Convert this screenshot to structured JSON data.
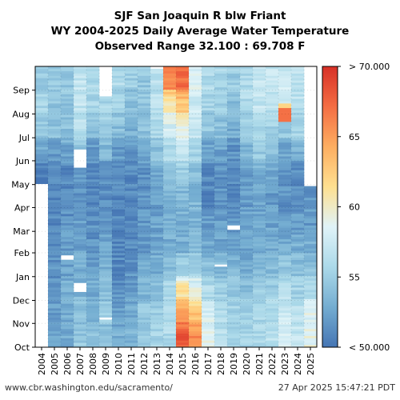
{
  "title": {
    "line1": "SJF San Joaquin R blw Friant",
    "line2": "WY 2004-2025 Daily Average Water Temperature",
    "line3": "Observed Range 32.100 : 69.708 F"
  },
  "footer": {
    "source": "www.cbr.washington.edu/sacramento/",
    "timestamp": "27 Apr 2025 15:47:21 PDT"
  },
  "chart_data": {
    "type": "heatmap",
    "x": [
      "2004",
      "2005",
      "2006",
      "2007",
      "2008",
      "2009",
      "2010",
      "2011",
      "2012",
      "2013",
      "2014",
      "2015",
      "2016",
      "2017",
      "2018",
      "2019",
      "2020",
      "2021",
      "2022",
      "2023",
      "2024",
      "2025"
    ],
    "y": [
      "Oct",
      "Nov",
      "Dec",
      "Jan",
      "Feb",
      "Mar",
      "Apr",
      "May",
      "Jun",
      "Jul",
      "Aug",
      "Sep"
    ],
    "xlabel": "",
    "ylabel": "",
    "colorbar": {
      "min": 50,
      "max": 70,
      "ticks": [
        {
          "value": 70,
          "label": "> 70.000"
        },
        {
          "value": 65,
          "label": "65"
        },
        {
          "value": 60,
          "label": "60"
        },
        {
          "value": 55,
          "label": "55"
        },
        {
          "value": 50,
          "label": "< 50.000"
        }
      ],
      "colors": [
        "#4575b4",
        "#74add1",
        "#abd9e9",
        "#e0f3f8",
        "#fee090",
        "#fdae61",
        "#f46d43",
        "#d73027"
      ]
    },
    "monthly_mean_temperature_F": {
      "2004": [
        null,
        null,
        null,
        null,
        null,
        null,
        null,
        50,
        52.5,
        54.5,
        55.5,
        55
      ],
      "2005": [
        53,
        52,
        52,
        51.5,
        51,
        51,
        51,
        51,
        52,
        54,
        54.5,
        54.5
      ],
      "2006": [
        53,
        53,
        53,
        52.5,
        52,
        51.5,
        51,
        51,
        52.5,
        54,
        54.5,
        54.5
      ],
      "2007": [
        54.5,
        54,
        53.5,
        53,
        52.5,
        52,
        51.5,
        52,
        54,
        56.5,
        57,
        57
      ],
      "2008": [
        54,
        53.5,
        53,
        52,
        51.5,
        51.5,
        51,
        51,
        52,
        54,
        55.5,
        56
      ],
      "2009": [
        54,
        54.5,
        54,
        53,
        52.5,
        52,
        51.5,
        51.5,
        53.5,
        55,
        55.5,
        54.5
      ],
      "2010": [
        53,
        52,
        51.5,
        51,
        51,
        51,
        51,
        51,
        52,
        54,
        55.5,
        56
      ],
      "2011": [
        53.5,
        53,
        52,
        51.5,
        51,
        51,
        51,
        51,
        51.5,
        53,
        54,
        55
      ],
      "2012": [
        55,
        54.5,
        53.5,
        52.5,
        52,
        52,
        51.5,
        51.5,
        52.5,
        54,
        54.5,
        54.5
      ],
      "2013": [
        55.5,
        55,
        54,
        53,
        52.5,
        52.5,
        52,
        52.5,
        54,
        55.5,
        56.5,
        56.5
      ],
      "2014": [
        56,
        56,
        56,
        54,
        53,
        53,
        53,
        54,
        56,
        58,
        60.5,
        66
      ],
      "2015": [
        68,
        65,
        61,
        55,
        53,
        53,
        53.5,
        55,
        57,
        59,
        63,
        67
      ],
      "2016": [
        66,
        63,
        59,
        55.5,
        54,
        53.5,
        53.5,
        54,
        55.5,
        57,
        57.5,
        58
      ],
      "2017": [
        58.5,
        58,
        56,
        54,
        52.5,
        52,
        51,
        51,
        52,
        54.5,
        55.5,
        56
      ],
      "2018": [
        56.5,
        56,
        55,
        53.5,
        52.5,
        52,
        51.5,
        51.5,
        52.5,
        54,
        55,
        55.5
      ],
      "2019": [
        55.5,
        55.5,
        54.5,
        53.5,
        52.5,
        52,
        51,
        51,
        51.5,
        53,
        54,
        55
      ],
      "2020": [
        55.5,
        55,
        54,
        53,
        52.5,
        52.5,
        52,
        52,
        53.5,
        55,
        56,
        56
      ],
      "2021": [
        56,
        55.5,
        55,
        54,
        53,
        52.5,
        52.5,
        53,
        54.5,
        56,
        57,
        57
      ],
      "2022": [
        56.5,
        56,
        55,
        54,
        53,
        52.5,
        52,
        52.5,
        54,
        55.5,
        56.5,
        57
      ],
      "2023": [
        58,
        57.5,
        56.5,
        54.5,
        53,
        52,
        51.5,
        51.5,
        52.5,
        54.5,
        57,
        57.5
      ],
      "2024": [
        57,
        57,
        55.5,
        54,
        53,
        52,
        51.5,
        51.5,
        53,
        55.5,
        56.5,
        56.5
      ],
      "2025": [
        59,
        58.5,
        56,
        54,
        53,
        52,
        51.5,
        null,
        null,
        null,
        null,
        null
      ]
    },
    "anomalies": [
      {
        "year": "2023",
        "month": "Jul",
        "day_from": 20,
        "day_to": 38,
        "value": 67
      },
      {
        "year": "2023",
        "month": "Aug",
        "day_from": 0,
        "day_to": 12,
        "value": 62
      }
    ],
    "missing": [
      {
        "year": "2004",
        "day_from": 0,
        "day_to": 212
      },
      {
        "year": "2025",
        "day_from": 208,
        "day_to": 366
      },
      {
        "year": "2007",
        "day_from": 232,
        "day_to": 256
      },
      {
        "year": "2009",
        "day_from": 325,
        "day_to": 366
      },
      {
        "year": "2013",
        "day_from": 363,
        "day_to": 366
      },
      {
        "year": "2006",
        "day_from": 113,
        "day_to": 119
      },
      {
        "year": "2019",
        "day_from": 153,
        "day_to": 158
      },
      {
        "year": "2009",
        "day_from": 35,
        "day_to": 38
      },
      {
        "year": "2007",
        "day_from": 72,
        "day_to": 82
      },
      {
        "year": "2018",
        "day_from": 103,
        "day_to": 106
      }
    ]
  }
}
